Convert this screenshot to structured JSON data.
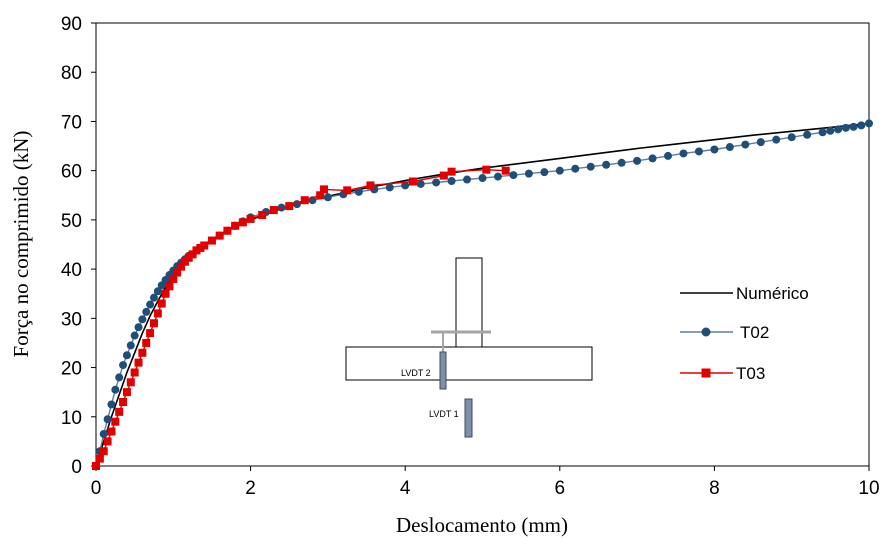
{
  "colors": {
    "numerico": "#000000",
    "t02_line": "#5b7fa6",
    "t02_marker": "#1f4e79",
    "t03": "#e00000",
    "sensor": "#7f8fa8",
    "plate": "#a6a6a6"
  },
  "chart_data": {
    "type": "line",
    "xlabel": "Deslocamento (mm)",
    "ylabel": "Força no comprimido (kN)",
    "xlim": [
      0,
      10
    ],
    "ylim": [
      0,
      90
    ],
    "xticks": [
      0,
      2,
      4,
      6,
      8,
      10
    ],
    "yticks": [
      0,
      10,
      20,
      30,
      40,
      50,
      60,
      70,
      80,
      90
    ],
    "grid": false,
    "legend_position": "right",
    "series": [
      {
        "name": "Numérico",
        "marker": "none",
        "x": [
          0,
          0.1,
          0.2,
          0.3,
          0.4,
          0.5,
          0.6,
          0.7,
          0.8,
          0.9,
          1.0,
          1.1,
          1.2,
          1.3,
          1.4,
          1.5,
          1.6,
          1.8,
          2.0,
          2.2,
          2.5,
          2.8,
          3.0,
          3.5,
          4.0,
          4.5,
          5.0,
          5.5,
          6.0,
          6.5,
          7.0,
          7.5,
          8.0,
          8.5,
          9.0,
          9.5,
          10.0
        ],
        "y": [
          0,
          5,
          10,
          14.5,
          19,
          23,
          27,
          30.5,
          33.5,
          36.3,
          38.8,
          40.8,
          42.5,
          43.8,
          45.0,
          46.0,
          47.0,
          48.6,
          50.0,
          51.2,
          52.8,
          54.0,
          54.8,
          56.5,
          58.0,
          59.3,
          60.5,
          61.5,
          62.5,
          63.5,
          64.5,
          65.4,
          66.3,
          67.2,
          68.0,
          68.8,
          69.6
        ]
      },
      {
        "name": "T02",
        "marker": "circle",
        "x": [
          0,
          0.05,
          0.1,
          0.15,
          0.2,
          0.25,
          0.3,
          0.35,
          0.4,
          0.45,
          0.5,
          0.55,
          0.6,
          0.65,
          0.7,
          0.75,
          0.8,
          0.85,
          0.9,
          0.95,
          1.0,
          1.05,
          1.1,
          1.15,
          1.2,
          1.3,
          1.4,
          1.5,
          1.6,
          1.7,
          1.8,
          1.9,
          2.0,
          2.2,
          2.4,
          2.6,
          2.8,
          3.0,
          3.2,
          3.4,
          3.6,
          3.8,
          4.0,
          4.2,
          4.4,
          4.6,
          4.8,
          5.0,
          5.2,
          5.4,
          5.6,
          5.8,
          6.0,
          6.2,
          6.4,
          6.6,
          6.8,
          7.0,
          7.2,
          7.4,
          7.6,
          7.8,
          8.0,
          8.2,
          8.4,
          8.6,
          8.8,
          9.0,
          9.2,
          9.4,
          9.5,
          9.6,
          9.7,
          9.8,
          9.9,
          10.0
        ],
        "y": [
          0,
          3,
          6.5,
          9.5,
          12.5,
          15.5,
          18,
          20.5,
          22.5,
          24.5,
          26.5,
          28.2,
          29.8,
          31.3,
          32.8,
          34.2,
          35.5,
          36.7,
          37.8,
          38.8,
          39.7,
          40.6,
          41.3,
          42.0,
          42.7,
          43.8,
          44.8,
          45.8,
          46.8,
          47.8,
          48.8,
          49.7,
          50.5,
          51.6,
          52.5,
          53.2,
          54.0,
          54.6,
          55.2,
          55.7,
          56.2,
          56.6,
          57.0,
          57.3,
          57.6,
          57.9,
          58.2,
          58.5,
          58.8,
          59.1,
          59.4,
          59.7,
          60.0,
          60.4,
          60.8,
          61.2,
          61.6,
          62.0,
          62.5,
          63.0,
          63.5,
          63.9,
          64.3,
          64.8,
          65.3,
          65.8,
          66.3,
          66.8,
          67.3,
          67.8,
          68.1,
          68.4,
          68.7,
          68.9,
          69.2,
          69.6
        ]
      },
      {
        "name": "T03",
        "marker": "square",
        "x": [
          0,
          0.05,
          0.1,
          0.15,
          0.2,
          0.25,
          0.3,
          0.35,
          0.4,
          0.45,
          0.5,
          0.55,
          0.6,
          0.65,
          0.7,
          0.75,
          0.8,
          0.85,
          0.9,
          0.95,
          1.0,
          1.05,
          1.1,
          1.15,
          1.2,
          1.25,
          1.3,
          1.35,
          1.4,
          1.5,
          1.6,
          1.7,
          1.8,
          1.9,
          2.0,
          2.15,
          2.3,
          2.5,
          2.7,
          2.9,
          2.95,
          3.25,
          3.55,
          4.1,
          4.5,
          4.6,
          5.05,
          5.3
        ],
        "y": [
          0,
          1.5,
          3,
          5,
          7,
          9,
          11,
          13,
          15,
          17,
          19,
          21,
          23,
          25,
          27,
          29,
          31,
          33,
          35,
          36.5,
          38,
          39.3,
          40.5,
          41.5,
          42.3,
          43,
          43.8,
          44.3,
          44.8,
          45.8,
          46.8,
          47.8,
          48.8,
          49.5,
          50.2,
          51,
          52,
          52.8,
          54,
          55,
          56.2,
          56,
          57,
          57.8,
          59,
          59.8,
          60.2,
          60
        ]
      }
    ]
  },
  "inset": {
    "sensor1_label": "LVDT 1",
    "sensor2_label": "LVDT 2"
  }
}
